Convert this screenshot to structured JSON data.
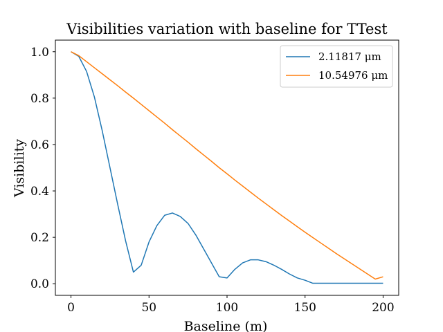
{
  "chart_data": {
    "type": "line",
    "title": "Visibilities variation with baseline for TTest",
    "xlabel": "Baseline (m)",
    "ylabel": "Visibility",
    "xlim": [
      -10,
      210
    ],
    "ylim": [
      -0.05,
      1.05
    ],
    "xticks": [
      0,
      50,
      100,
      150,
      200
    ],
    "xtick_labels": [
      "0",
      "50",
      "100",
      "150",
      "200"
    ],
    "yticks": [
      0.0,
      0.2,
      0.4,
      0.6,
      0.8,
      1.0
    ],
    "ytick_labels": [
      "0.0",
      "0.2",
      "0.4",
      "0.6",
      "0.8",
      "1.0"
    ],
    "legend_position": "top-right",
    "grid": false,
    "series": [
      {
        "name": "2.11817 μm",
        "color": "#1f77b4",
        "x": [
          0,
          5,
          10,
          15,
          20,
          25,
          30,
          35,
          40,
          45,
          50,
          55,
          60,
          65,
          70,
          75,
          80,
          85,
          90,
          95,
          100,
          105,
          110,
          115,
          120,
          125,
          130,
          135,
          140,
          145,
          150,
          155,
          160,
          165,
          170,
          175,
          180,
          185,
          190,
          195,
          200
        ],
        "values": [
          1.0,
          0.98,
          0.915,
          0.805,
          0.66,
          0.5,
          0.34,
          0.185,
          0.05,
          0.08,
          0.18,
          0.25,
          0.295,
          0.305,
          0.29,
          0.26,
          0.21,
          0.15,
          0.09,
          0.03,
          0.025,
          0.062,
          0.09,
          0.103,
          0.103,
          0.095,
          0.08,
          0.062,
          0.042,
          0.025,
          0.015,
          0.002,
          0.002,
          0.002,
          0.002,
          0.002,
          0.002,
          0.002,
          0.002,
          0.002,
          0.002
        ]
      },
      {
        "name": "10.54976 μm",
        "color": "#ff7f0e",
        "x": [
          0,
          5,
          10,
          15,
          20,
          25,
          30,
          35,
          40,
          45,
          50,
          55,
          60,
          65,
          70,
          75,
          80,
          85,
          90,
          95,
          100,
          105,
          110,
          115,
          120,
          125,
          130,
          135,
          140,
          145,
          150,
          155,
          160,
          165,
          170,
          175,
          180,
          185,
          190,
          195,
          200
        ],
        "values": [
          1.0,
          0.983,
          0.957,
          0.931,
          0.905,
          0.879,
          0.853,
          0.826,
          0.8,
          0.773,
          0.746,
          0.719,
          0.692,
          0.664,
          0.637,
          0.61,
          0.582,
          0.555,
          0.528,
          0.5,
          0.474,
          0.447,
          0.421,
          0.395,
          0.369,
          0.344,
          0.319,
          0.294,
          0.27,
          0.246,
          0.222,
          0.199,
          0.176,
          0.153,
          0.13,
          0.108,
          0.086,
          0.064,
          0.042,
          0.02,
          0.03
        ]
      }
    ]
  }
}
